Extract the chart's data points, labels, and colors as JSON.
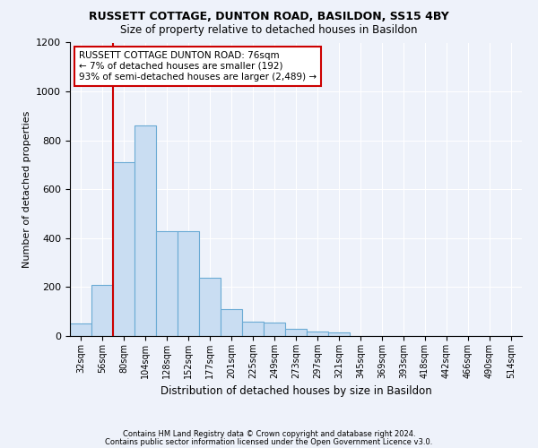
{
  "title1": "RUSSETT COTTAGE, DUNTON ROAD, BASILDON, SS15 4BY",
  "title2": "Size of property relative to detached houses in Basildon",
  "xlabel": "Distribution of detached houses by size in Basildon",
  "ylabel": "Number of detached properties",
  "bin_labels": [
    "32sqm",
    "56sqm",
    "80sqm",
    "104sqm",
    "128sqm",
    "152sqm",
    "177sqm",
    "201sqm",
    "225sqm",
    "249sqm",
    "273sqm",
    "297sqm",
    "321sqm",
    "345sqm",
    "369sqm",
    "393sqm",
    "418sqm",
    "442sqm",
    "466sqm",
    "490sqm",
    "514sqm"
  ],
  "bar_values": [
    50,
    210,
    710,
    860,
    430,
    430,
    240,
    110,
    60,
    55,
    30,
    20,
    15,
    0,
    0,
    0,
    0,
    0,
    0,
    0,
    0
  ],
  "bar_color": "#c9ddf2",
  "bar_edge_color": "#6aaad4",
  "vline_x": 1.5,
  "vline_color": "#cc0000",
  "annotation_text": "RUSSETT COTTAGE DUNTON ROAD: 76sqm\n← 7% of detached houses are smaller (192)\n93% of semi-detached houses are larger (2,489) →",
  "annotation_box_color": "#ffffff",
  "annotation_box_edge": "#cc0000",
  "ylim": [
    0,
    1200
  ],
  "yticks": [
    0,
    200,
    400,
    600,
    800,
    1000,
    1200
  ],
  "footer1": "Contains HM Land Registry data © Crown copyright and database right 2024.",
  "footer2": "Contains public sector information licensed under the Open Government Licence v3.0.",
  "background_color": "#eef2fa",
  "plot_bg_color": "#eef2fa",
  "grid_color": "#ffffff"
}
